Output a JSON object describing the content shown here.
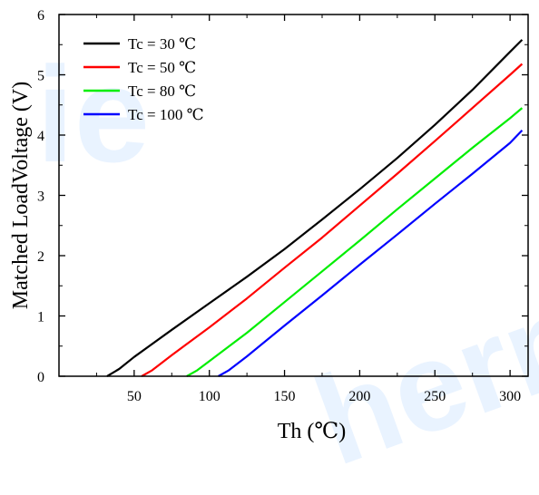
{
  "watermark": {
    "left_text": "ie",
    "right_text": "herm"
  },
  "chart_data": {
    "type": "line",
    "xlabel": "Th (℃)",
    "ylabel": "Matched LoadVoltage (V)",
    "xlim": [
      0,
      312
    ],
    "ylim": [
      0,
      6
    ],
    "x_ticks": [
      50,
      100,
      150,
      200,
      250,
      300
    ],
    "y_ticks": [
      0,
      1,
      2,
      3,
      4,
      5,
      6
    ],
    "grid": false,
    "legend_position": "top-left",
    "series": [
      {
        "name": "Tc = 30 ℃",
        "color": "#000000",
        "x": [
          32,
          40,
          50,
          75,
          100,
          125,
          150,
          175,
          200,
          225,
          250,
          275,
          300,
          308
        ],
        "y": [
          0,
          0.12,
          0.32,
          0.77,
          1.21,
          1.65,
          2.11,
          2.6,
          3.1,
          3.62,
          4.17,
          4.75,
          5.38,
          5.58
        ]
      },
      {
        "name": "Tc = 50 ℃",
        "color": "#ff0000",
        "x": [
          55,
          62,
          75,
          100,
          125,
          150,
          175,
          200,
          225,
          250,
          275,
          300,
          308
        ],
        "y": [
          0,
          0.1,
          0.35,
          0.81,
          1.29,
          1.8,
          2.3,
          2.83,
          3.36,
          3.9,
          4.45,
          5.0,
          5.18
        ]
      },
      {
        "name": "Tc = 80 ℃",
        "color": "#00ee00",
        "x": [
          85,
          92,
          100,
          125,
          150,
          175,
          200,
          225,
          250,
          275,
          300,
          308
        ],
        "y": [
          0,
          0.1,
          0.25,
          0.72,
          1.23,
          1.74,
          2.25,
          2.77,
          3.28,
          3.79,
          4.28,
          4.45
        ]
      },
      {
        "name": "Tc = 100 ℃",
        "color": "#0000ff",
        "x": [
          106,
          113,
          125,
          150,
          175,
          200,
          225,
          250,
          275,
          300,
          308
        ],
        "y": [
          0,
          0.1,
          0.33,
          0.84,
          1.34,
          1.85,
          2.35,
          2.86,
          3.36,
          3.87,
          4.08
        ]
      }
    ]
  }
}
